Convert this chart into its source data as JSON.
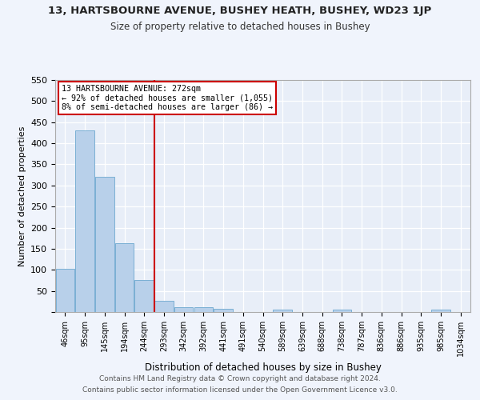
{
  "title1": "13, HARTSBOURNE AVENUE, BUSHEY HEATH, BUSHEY, WD23 1JP",
  "title2": "Size of property relative to detached houses in Bushey",
  "xlabel": "Distribution of detached houses by size in Bushey",
  "ylabel": "Number of detached properties",
  "bar_labels": [
    "46sqm",
    "95sqm",
    "145sqm",
    "194sqm",
    "244sqm",
    "293sqm",
    "342sqm",
    "392sqm",
    "441sqm",
    "491sqm",
    "540sqm",
    "589sqm",
    "639sqm",
    "688sqm",
    "738sqm",
    "787sqm",
    "836sqm",
    "886sqm",
    "935sqm",
    "985sqm",
    "1034sqm"
  ],
  "bar_values": [
    103,
    430,
    320,
    163,
    75,
    26,
    12,
    12,
    7,
    0,
    0,
    5,
    0,
    0,
    6,
    0,
    0,
    0,
    0,
    5,
    0
  ],
  "bar_color": "#b8d0ea",
  "bar_edge_color": "#7aafd4",
  "ylim": [
    0,
    550
  ],
  "yticks": [
    0,
    50,
    100,
    150,
    200,
    250,
    300,
    350,
    400,
    450,
    500,
    550
  ],
  "vline_x": 4.5,
  "vline_color": "#cc0000",
  "annotation_title": "13 HARTSBOURNE AVENUE: 272sqm",
  "annotation_line1": "← 92% of detached houses are smaller (1,055)",
  "annotation_line2": "8% of semi-detached houses are larger (86) →",
  "annotation_box_color": "#ffffff",
  "annotation_box_edge": "#cc0000",
  "bg_color": "#e8eef8",
  "fig_bg_color": "#f0f4fc",
  "footer1": "Contains HM Land Registry data © Crown copyright and database right 2024.",
  "footer2": "Contains public sector information licensed under the Open Government Licence v3.0."
}
